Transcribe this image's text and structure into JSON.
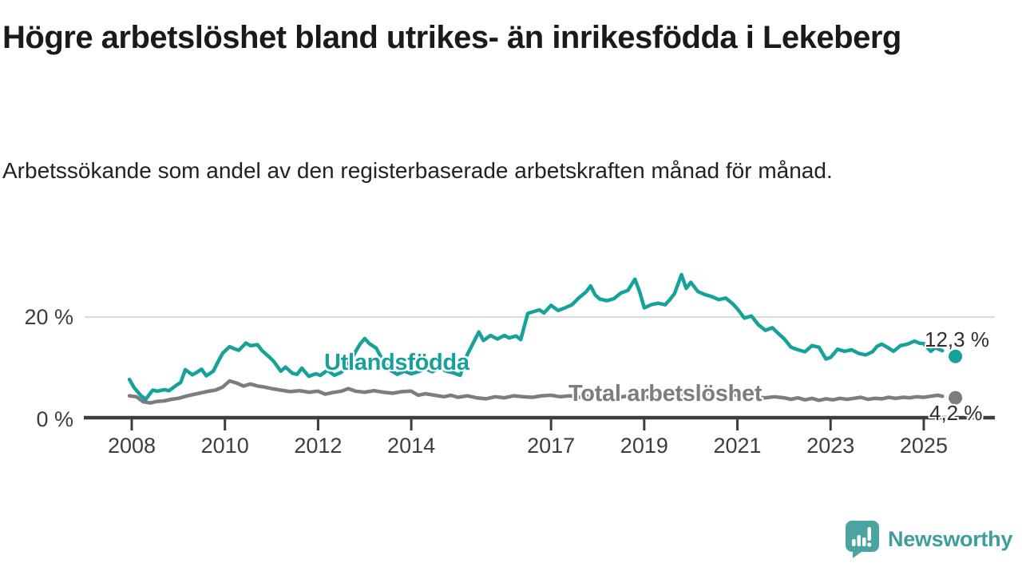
{
  "header": {
    "title": "Högre arbetslöshet bland utrikes- än inrikesfödda i Lekeberg",
    "subtitle": "Arbetssökande som andel av den registerbaserade arbetskraften månad för månad."
  },
  "chart_data": {
    "type": "line",
    "unit": "%",
    "xlim": [
      2007.6,
      2026.1
    ],
    "ylim": [
      0,
      29
    ],
    "grid": "y-at-20-only",
    "legend_position": "inline-labels-on-lines",
    "yticks": [
      {
        "value": 0,
        "label": "0 %"
      },
      {
        "value": 20,
        "label": "20 %"
      }
    ],
    "xticks": [
      {
        "year": 2008,
        "label": "2008"
      },
      {
        "year": 2010,
        "label": "2010"
      },
      {
        "year": 2012,
        "label": "2012"
      },
      {
        "year": 2014,
        "label": "2014"
      },
      {
        "year": 2017,
        "label": "2017"
      },
      {
        "year": 2019,
        "label": "2019"
      },
      {
        "year": 2021,
        "label": "2021"
      },
      {
        "year": 2023,
        "label": "2023"
      },
      {
        "year": 2025,
        "label": "2025"
      }
    ],
    "series": [
      {
        "name": "Utlandsfödda",
        "color": "#16a29a",
        "points": [
          [
            2007.95,
            7.8
          ],
          [
            2008.05,
            6.2
          ],
          [
            2008.2,
            4.6
          ],
          [
            2008.3,
            3.9
          ],
          [
            2008.45,
            5.7
          ],
          [
            2008.55,
            5.5
          ],
          [
            2008.7,
            5.8
          ],
          [
            2008.8,
            5.6
          ],
          [
            2008.95,
            6.6
          ],
          [
            2009.05,
            7.2
          ],
          [
            2009.15,
            9.7
          ],
          [
            2009.3,
            8.7
          ],
          [
            2009.4,
            9.2
          ],
          [
            2009.5,
            9.8
          ],
          [
            2009.6,
            8.5
          ],
          [
            2009.75,
            9.4
          ],
          [
            2009.85,
            11.2
          ],
          [
            2009.95,
            12.9
          ],
          [
            2010.1,
            14.2
          ],
          [
            2010.2,
            13.8
          ],
          [
            2010.3,
            13.5
          ],
          [
            2010.45,
            14.9
          ],
          [
            2010.55,
            14.4
          ],
          [
            2010.7,
            14.6
          ],
          [
            2010.8,
            13.4
          ],
          [
            2010.95,
            12.2
          ],
          [
            2011.05,
            11.3
          ],
          [
            2011.2,
            9.4
          ],
          [
            2011.3,
            10.2
          ],
          [
            2011.45,
            9.0
          ],
          [
            2011.55,
            8.8
          ],
          [
            2011.65,
            10.0
          ],
          [
            2011.8,
            8.4
          ],
          [
            2011.95,
            8.9
          ],
          [
            2012.05,
            8.6
          ],
          [
            2012.2,
            9.6
          ],
          [
            2012.35,
            8.6
          ],
          [
            2012.5,
            9.2
          ],
          [
            2012.6,
            10.6
          ],
          [
            2012.75,
            12.4
          ],
          [
            2012.9,
            14.7
          ],
          [
            2013.0,
            15.8
          ],
          [
            2013.1,
            14.8
          ],
          [
            2013.25,
            13.9
          ],
          [
            2013.4,
            11.3
          ],
          [
            2013.55,
            9.6
          ],
          [
            2013.7,
            8.8
          ],
          [
            2013.85,
            9.4
          ],
          [
            2014.0,
            8.9
          ],
          [
            2014.15,
            9.3
          ],
          [
            2014.3,
            9.9
          ],
          [
            2014.45,
            9.3
          ],
          [
            2014.6,
            10.1
          ],
          [
            2014.75,
            9.4
          ],
          [
            2014.9,
            9.1
          ],
          [
            2015.05,
            8.6
          ],
          [
            2015.2,
            12.6
          ],
          [
            2015.3,
            14.4
          ],
          [
            2015.45,
            17.1
          ],
          [
            2015.55,
            15.4
          ],
          [
            2015.7,
            16.4
          ],
          [
            2015.85,
            15.7
          ],
          [
            2016.0,
            16.4
          ],
          [
            2016.1,
            15.9
          ],
          [
            2016.25,
            16.3
          ],
          [
            2016.35,
            15.6
          ],
          [
            2016.5,
            20.7
          ],
          [
            2016.6,
            21.0
          ],
          [
            2016.75,
            21.4
          ],
          [
            2016.85,
            20.8
          ],
          [
            2017.0,
            22.3
          ],
          [
            2017.15,
            21.3
          ],
          [
            2017.3,
            21.8
          ],
          [
            2017.45,
            22.4
          ],
          [
            2017.6,
            23.8
          ],
          [
            2017.75,
            24.9
          ],
          [
            2017.85,
            26.1
          ],
          [
            2017.95,
            24.3
          ],
          [
            2018.05,
            23.5
          ],
          [
            2018.2,
            23.2
          ],
          [
            2018.35,
            23.6
          ],
          [
            2018.5,
            24.7
          ],
          [
            2018.65,
            25.2
          ],
          [
            2018.8,
            27.4
          ],
          [
            2018.9,
            25.0
          ],
          [
            2019.0,
            21.8
          ],
          [
            2019.15,
            22.4
          ],
          [
            2019.3,
            22.7
          ],
          [
            2019.45,
            22.4
          ],
          [
            2019.55,
            23.4
          ],
          [
            2019.65,
            24.6
          ],
          [
            2019.8,
            28.3
          ],
          [
            2019.9,
            25.6
          ],
          [
            2020.0,
            26.8
          ],
          [
            2020.15,
            25.0
          ],
          [
            2020.3,
            24.4
          ],
          [
            2020.45,
            24.0
          ],
          [
            2020.6,
            23.4
          ],
          [
            2020.75,
            23.7
          ],
          [
            2020.9,
            22.6
          ],
          [
            2021.0,
            21.6
          ],
          [
            2021.15,
            19.8
          ],
          [
            2021.3,
            20.2
          ],
          [
            2021.45,
            18.5
          ],
          [
            2021.6,
            17.4
          ],
          [
            2021.75,
            17.9
          ],
          [
            2021.9,
            16.6
          ],
          [
            2022.0,
            15.8
          ],
          [
            2022.15,
            14.1
          ],
          [
            2022.3,
            13.6
          ],
          [
            2022.45,
            13.2
          ],
          [
            2022.6,
            14.4
          ],
          [
            2022.75,
            14.1
          ],
          [
            2022.9,
            11.8
          ],
          [
            2023.0,
            12.1
          ],
          [
            2023.15,
            13.7
          ],
          [
            2023.3,
            13.3
          ],
          [
            2023.45,
            13.6
          ],
          [
            2023.6,
            12.9
          ],
          [
            2023.75,
            12.6
          ],
          [
            2023.9,
            13.2
          ],
          [
            2024.0,
            14.3
          ],
          [
            2024.1,
            14.7
          ],
          [
            2024.25,
            13.9
          ],
          [
            2024.35,
            13.3
          ],
          [
            2024.5,
            14.4
          ],
          [
            2024.65,
            14.7
          ],
          [
            2024.8,
            15.3
          ],
          [
            2024.9,
            14.9
          ],
          [
            2025.0,
            14.8
          ],
          [
            2025.15,
            13.3
          ],
          [
            2025.25,
            14.0
          ],
          [
            2025.4,
            13.4
          ]
        ]
      },
      {
        "name": "Total arbetslöshet",
        "color": "#7c7c81",
        "points": [
          [
            2007.95,
            4.6
          ],
          [
            2008.1,
            4.4
          ],
          [
            2008.25,
            3.4
          ],
          [
            2008.4,
            3.2
          ],
          [
            2008.55,
            3.5
          ],
          [
            2008.7,
            3.6
          ],
          [
            2008.85,
            3.9
          ],
          [
            2009.0,
            4.1
          ],
          [
            2009.2,
            4.6
          ],
          [
            2009.4,
            5.0
          ],
          [
            2009.6,
            5.4
          ],
          [
            2009.8,
            5.7
          ],
          [
            2009.95,
            6.3
          ],
          [
            2010.1,
            7.5
          ],
          [
            2010.25,
            7.1
          ],
          [
            2010.4,
            6.5
          ],
          [
            2010.55,
            6.9
          ],
          [
            2010.7,
            6.5
          ],
          [
            2010.85,
            6.3
          ],
          [
            2011.0,
            6.0
          ],
          [
            2011.2,
            5.7
          ],
          [
            2011.4,
            5.4
          ],
          [
            2011.6,
            5.6
          ],
          [
            2011.8,
            5.3
          ],
          [
            2012.0,
            5.5
          ],
          [
            2012.15,
            4.9
          ],
          [
            2012.3,
            5.2
          ],
          [
            2012.5,
            5.5
          ],
          [
            2012.65,
            6.0
          ],
          [
            2012.8,
            5.5
          ],
          [
            2013.0,
            5.3
          ],
          [
            2013.2,
            5.6
          ],
          [
            2013.4,
            5.3
          ],
          [
            2013.6,
            5.1
          ],
          [
            2013.8,
            5.4
          ],
          [
            2014.0,
            5.5
          ],
          [
            2014.15,
            4.7
          ],
          [
            2014.3,
            5.0
          ],
          [
            2014.5,
            4.7
          ],
          [
            2014.7,
            4.4
          ],
          [
            2014.85,
            4.7
          ],
          [
            2015.0,
            4.3
          ],
          [
            2015.2,
            4.6
          ],
          [
            2015.4,
            4.2
          ],
          [
            2015.6,
            4.0
          ],
          [
            2015.8,
            4.4
          ],
          [
            2016.0,
            4.2
          ],
          [
            2016.2,
            4.6
          ],
          [
            2016.4,
            4.4
          ],
          [
            2016.6,
            4.3
          ],
          [
            2016.8,
            4.6
          ],
          [
            2017.0,
            4.7
          ],
          [
            2017.2,
            4.4
          ],
          [
            2017.4,
            4.6
          ],
          [
            2017.6,
            4.3
          ],
          [
            2017.8,
            4.5
          ],
          [
            2018.0,
            4.2
          ],
          [
            2018.2,
            4.4
          ],
          [
            2018.4,
            4.2
          ],
          [
            2018.6,
            4.5
          ],
          [
            2018.8,
            4.3
          ],
          [
            2019.0,
            4.4
          ],
          [
            2019.2,
            4.2
          ],
          [
            2019.4,
            4.5
          ],
          [
            2019.6,
            4.3
          ],
          [
            2019.8,
            4.5
          ],
          [
            2020.0,
            4.8
          ],
          [
            2020.2,
            5.1
          ],
          [
            2020.4,
            5.2
          ],
          [
            2020.6,
            5.0
          ],
          [
            2020.8,
            4.8
          ],
          [
            2021.0,
            4.7
          ],
          [
            2021.2,
            4.5
          ],
          [
            2021.4,
            4.3
          ],
          [
            2021.6,
            4.2
          ],
          [
            2021.8,
            4.4
          ],
          [
            2022.0,
            4.2
          ],
          [
            2022.15,
            3.9
          ],
          [
            2022.3,
            4.2
          ],
          [
            2022.45,
            3.8
          ],
          [
            2022.6,
            4.1
          ],
          [
            2022.75,
            3.7
          ],
          [
            2022.9,
            4.0
          ],
          [
            2023.05,
            3.8
          ],
          [
            2023.2,
            4.1
          ],
          [
            2023.35,
            3.9
          ],
          [
            2023.5,
            4.1
          ],
          [
            2023.65,
            4.3
          ],
          [
            2023.8,
            3.9
          ],
          [
            2023.95,
            4.1
          ],
          [
            2024.1,
            4.0
          ],
          [
            2024.25,
            4.3
          ],
          [
            2024.4,
            4.1
          ],
          [
            2024.55,
            4.3
          ],
          [
            2024.7,
            4.2
          ],
          [
            2024.85,
            4.4
          ],
          [
            2025.0,
            4.3
          ],
          [
            2025.15,
            4.5
          ],
          [
            2025.3,
            4.7
          ],
          [
            2025.4,
            4.5
          ]
        ]
      }
    ],
    "end_dots": [
      {
        "series": "Utlandsfödda",
        "year": 2025.68,
        "value": 12.3,
        "label": "12,3 %",
        "color": "#16a29a"
      },
      {
        "series": "Total arbetslöshet",
        "year": 2025.68,
        "value": 4.2,
        "label": "4,2 %",
        "color": "#7c7c81"
      }
    ],
    "colors": {
      "axis": "#3d3d3d",
      "gridline": "#dadada",
      "tick_text": "#3d3d3d"
    }
  },
  "footer": {
    "brand": "Newsworthy",
    "brand_color": "#3f9e9c",
    "icon_color": "#4aa5a2"
  }
}
